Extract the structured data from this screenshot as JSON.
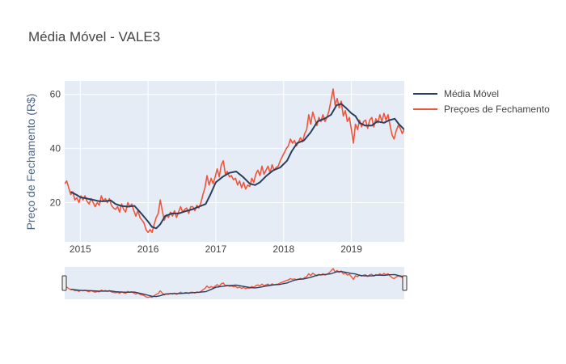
{
  "chart_data": {
    "type": "line",
    "title": "Média Móvel - VALE3",
    "ylabel": "Preço de Fechamento (R$)",
    "xlabel": "",
    "x_range": [
      2014.77,
      2019.78
    ],
    "ylim": [
      5.5,
      65
    ],
    "x_ticks": [
      {
        "value": 2015,
        "label": "2015"
      },
      {
        "value": 2016,
        "label": "2016"
      },
      {
        "value": 2017,
        "label": "2017"
      },
      {
        "value": 2018,
        "label": "2018"
      },
      {
        "value": 2019,
        "label": "2019"
      }
    ],
    "y_ticks": [
      {
        "value": 20,
        "label": "20"
      },
      {
        "value": 40,
        "label": "40"
      },
      {
        "value": 60,
        "label": "60"
      }
    ],
    "grid": true,
    "legend_position": "right",
    "rangeslider": true,
    "series": [
      {
        "name": "Média Móvel",
        "color": "#2a3f5f",
        "points": [
          [
            2014.86,
            24.0
          ],
          [
            2014.95,
            22.8
          ],
          [
            2015.0,
            22.0
          ],
          [
            2015.1,
            21.5
          ],
          [
            2015.2,
            21.0
          ],
          [
            2015.28,
            20.5
          ],
          [
            2015.37,
            20.5
          ],
          [
            2015.45,
            20.8
          ],
          [
            2015.52,
            19.5
          ],
          [
            2015.6,
            18.8
          ],
          [
            2015.7,
            18.5
          ],
          [
            2015.8,
            18.8
          ],
          [
            2015.9,
            16.0
          ],
          [
            2015.95,
            14.5
          ],
          [
            2016.0,
            13.0
          ],
          [
            2016.06,
            11.0
          ],
          [
            2016.12,
            10.5
          ],
          [
            2016.18,
            12.0
          ],
          [
            2016.25,
            15.0
          ],
          [
            2016.35,
            16.0
          ],
          [
            2016.45,
            16.0
          ],
          [
            2016.55,
            16.8
          ],
          [
            2016.65,
            17.5
          ],
          [
            2016.75,
            18.5
          ],
          [
            2016.85,
            19.5
          ],
          [
            2016.92,
            23.0
          ],
          [
            2017.0,
            27.5
          ],
          [
            2017.1,
            29.5
          ],
          [
            2017.2,
            31.0
          ],
          [
            2017.3,
            31.5
          ],
          [
            2017.4,
            29.5
          ],
          [
            2017.5,
            27.0
          ],
          [
            2017.58,
            26.5
          ],
          [
            2017.65,
            27.5
          ],
          [
            2017.75,
            30.0
          ],
          [
            2017.85,
            32.0
          ],
          [
            2017.95,
            33.0
          ],
          [
            2018.05,
            35.5
          ],
          [
            2018.12,
            39.0
          ],
          [
            2018.2,
            42.0
          ],
          [
            2018.3,
            43.0
          ],
          [
            2018.4,
            46.0
          ],
          [
            2018.5,
            50.0
          ],
          [
            2018.6,
            51.0
          ],
          [
            2018.7,
            52.5
          ],
          [
            2018.78,
            56.0
          ],
          [
            2018.85,
            56.5
          ],
          [
            2018.92,
            55.0
          ],
          [
            2019.0,
            53.0
          ],
          [
            2019.06,
            52.0
          ],
          [
            2019.12,
            49.5
          ],
          [
            2019.2,
            48.5
          ],
          [
            2019.3,
            48.5
          ],
          [
            2019.38,
            50.0
          ],
          [
            2019.48,
            49.5
          ],
          [
            2019.56,
            50.5
          ],
          [
            2019.64,
            51.0
          ],
          [
            2019.7,
            49.0
          ],
          [
            2019.78,
            47.0
          ]
        ]
      },
      {
        "name": "Preçoes de Fechamento",
        "color": "#ef553b",
        "points": [
          [
            2014.77,
            27.0
          ],
          [
            2014.8,
            28.0
          ],
          [
            2014.83,
            25.5
          ],
          [
            2014.86,
            23.0
          ],
          [
            2014.89,
            24.0
          ],
          [
            2014.92,
            21.0
          ],
          [
            2014.95,
            21.8
          ],
          [
            2014.98,
            20.0
          ],
          [
            2015.01,
            22.5
          ],
          [
            2015.04,
            21.0
          ],
          [
            2015.07,
            22.5
          ],
          [
            2015.1,
            20.5
          ],
          [
            2015.13,
            19.5
          ],
          [
            2015.16,
            21.5
          ],
          [
            2015.19,
            20.0
          ],
          [
            2015.22,
            18.5
          ],
          [
            2015.25,
            20.0
          ],
          [
            2015.28,
            19.0
          ],
          [
            2015.31,
            22.5
          ],
          [
            2015.34,
            20.5
          ],
          [
            2015.37,
            21.5
          ],
          [
            2015.4,
            20.0
          ],
          [
            2015.43,
            21.5
          ],
          [
            2015.46,
            19.0
          ],
          [
            2015.49,
            18.0
          ],
          [
            2015.52,
            17.5
          ],
          [
            2015.55,
            18.5
          ],
          [
            2015.58,
            16.5
          ],
          [
            2015.61,
            19.5
          ],
          [
            2015.64,
            17.5
          ],
          [
            2015.67,
            16.5
          ],
          [
            2015.7,
            20.0
          ],
          [
            2015.73,
            18.5
          ],
          [
            2015.76,
            19.5
          ],
          [
            2015.79,
            17.0
          ],
          [
            2015.82,
            15.0
          ],
          [
            2015.85,
            17.0
          ],
          [
            2015.88,
            14.5
          ],
          [
            2015.91,
            13.5
          ],
          [
            2015.94,
            12.5
          ],
          [
            2015.97,
            10.0
          ],
          [
            2016.0,
            9.0
          ],
          [
            2016.03,
            10.0
          ],
          [
            2016.06,
            9.0
          ],
          [
            2016.09,
            12.0
          ],
          [
            2016.12,
            14.5
          ],
          [
            2016.15,
            16.0
          ],
          [
            2016.18,
            21.0
          ],
          [
            2016.21,
            17.0
          ],
          [
            2016.24,
            13.5
          ],
          [
            2016.27,
            15.5
          ],
          [
            2016.3,
            14.5
          ],
          [
            2016.33,
            16.5
          ],
          [
            2016.36,
            15.0
          ],
          [
            2016.39,
            17.0
          ],
          [
            2016.42,
            14.5
          ],
          [
            2016.45,
            16.5
          ],
          [
            2016.48,
            18.5
          ],
          [
            2016.51,
            16.5
          ],
          [
            2016.54,
            17.5
          ],
          [
            2016.57,
            18.0
          ],
          [
            2016.6,
            16.0
          ],
          [
            2016.63,
            18.5
          ],
          [
            2016.66,
            18.5
          ],
          [
            2016.69,
            17.0
          ],
          [
            2016.72,
            19.0
          ],
          [
            2016.75,
            18.0
          ],
          [
            2016.78,
            20.0
          ],
          [
            2016.81,
            23.0
          ],
          [
            2016.84,
            25.5
          ],
          [
            2016.87,
            30.0
          ],
          [
            2016.9,
            26.5
          ],
          [
            2016.93,
            29.0
          ],
          [
            2016.96,
            27.0
          ],
          [
            2016.99,
            29.5
          ],
          [
            2017.02,
            32.5
          ],
          [
            2017.05,
            29.5
          ],
          [
            2017.08,
            34.0
          ],
          [
            2017.11,
            35.5
          ],
          [
            2017.14,
            30.5
          ],
          [
            2017.17,
            31.5
          ],
          [
            2017.2,
            29.5
          ],
          [
            2017.23,
            30.0
          ],
          [
            2017.26,
            28.5
          ],
          [
            2017.29,
            29.0
          ],
          [
            2017.32,
            26.5
          ],
          [
            2017.35,
            28.0
          ],
          [
            2017.38,
            25.5
          ],
          [
            2017.41,
            27.5
          ],
          [
            2017.44,
            25.0
          ],
          [
            2017.47,
            26.5
          ],
          [
            2017.5,
            26.0
          ],
          [
            2017.53,
            29.0
          ],
          [
            2017.56,
            27.5
          ],
          [
            2017.59,
            30.5
          ],
          [
            2017.62,
            32.0
          ],
          [
            2017.65,
            30.0
          ],
          [
            2017.68,
            33.5
          ],
          [
            2017.71,
            30.5
          ],
          [
            2017.74,
            32.0
          ],
          [
            2017.77,
            33.5
          ],
          [
            2017.8,
            31.0
          ],
          [
            2017.83,
            34.0
          ],
          [
            2017.86,
            32.0
          ],
          [
            2017.89,
            33.0
          ],
          [
            2017.92,
            33.5
          ],
          [
            2017.95,
            35.5
          ],
          [
            2017.98,
            37.0
          ],
          [
            2018.01,
            38.5
          ],
          [
            2018.04,
            40.0
          ],
          [
            2018.07,
            41.0
          ],
          [
            2018.1,
            43.5
          ],
          [
            2018.13,
            42.0
          ],
          [
            2018.16,
            43.0
          ],
          [
            2018.19,
            41.0
          ],
          [
            2018.22,
            42.5
          ],
          [
            2018.25,
            44.0
          ],
          [
            2018.28,
            42.5
          ],
          [
            2018.31,
            45.5
          ],
          [
            2018.34,
            47.0
          ],
          [
            2018.37,
            52.5
          ],
          [
            2018.4,
            49.0
          ],
          [
            2018.43,
            53.5
          ],
          [
            2018.46,
            51.0
          ],
          [
            2018.49,
            48.5
          ],
          [
            2018.52,
            51.5
          ],
          [
            2018.55,
            50.0
          ],
          [
            2018.58,
            52.5
          ],
          [
            2018.61,
            50.0
          ],
          [
            2018.64,
            51.5
          ],
          [
            2018.67,
            54.0
          ],
          [
            2018.7,
            58.0
          ],
          [
            2018.73,
            62.0
          ],
          [
            2018.76,
            56.0
          ],
          [
            2018.79,
            58.5
          ],
          [
            2018.82,
            55.0
          ],
          [
            2018.85,
            57.5
          ],
          [
            2018.88,
            52.0
          ],
          [
            2018.91,
            54.0
          ],
          [
            2018.94,
            50.0
          ],
          [
            2018.97,
            51.5
          ],
          [
            2019.0,
            47.0
          ],
          [
            2019.03,
            42.0
          ],
          [
            2019.06,
            49.0
          ],
          [
            2019.09,
            47.0
          ],
          [
            2019.12,
            50.5
          ],
          [
            2019.15,
            48.0
          ],
          [
            2019.18,
            50.0
          ],
          [
            2019.21,
            50.5
          ],
          [
            2019.24,
            47.5
          ],
          [
            2019.27,
            50.5
          ],
          [
            2019.3,
            51.5
          ],
          [
            2019.33,
            48.0
          ],
          [
            2019.36,
            51.0
          ],
          [
            2019.39,
            49.5
          ],
          [
            2019.42,
            52.5
          ],
          [
            2019.45,
            50.0
          ],
          [
            2019.48,
            53.0
          ],
          [
            2019.51,
            50.5
          ],
          [
            2019.54,
            52.5
          ],
          [
            2019.57,
            48.5
          ],
          [
            2019.6,
            45.0
          ],
          [
            2019.63,
            43.5
          ],
          [
            2019.66,
            46.5
          ],
          [
            2019.69,
            48.5
          ],
          [
            2019.72,
            47.5
          ],
          [
            2019.75,
            45.5
          ],
          [
            2019.78,
            47.0
          ]
        ]
      }
    ]
  }
}
